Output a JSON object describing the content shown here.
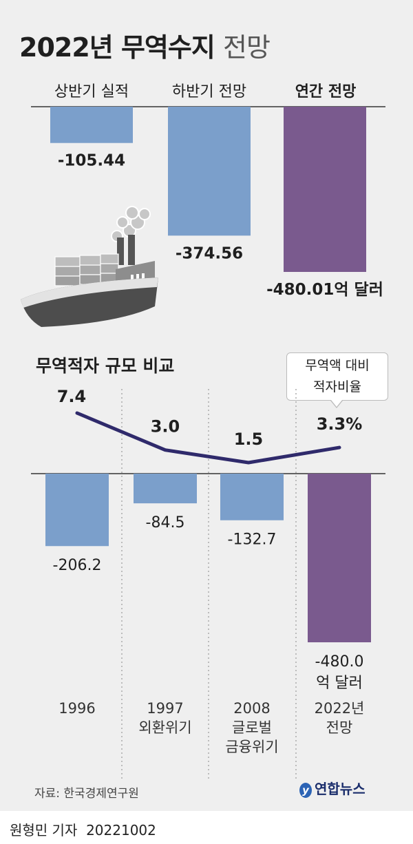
{
  "title": {
    "main": "2022년 무역수지",
    "sub": "전망"
  },
  "colors": {
    "blue": "#7b9fcb",
    "purple": "#7a5a8e",
    "line": "#2f2a6b",
    "panel": "#efefef"
  },
  "chart_data": [
    {
      "type": "bar",
      "categories": [
        "상반기 실적",
        "하반기 전망",
        "연간 전망"
      ],
      "values": [
        -105.44,
        -374.56,
        -480.01
      ],
      "labels": [
        "-105.44",
        "-374.56",
        "-480.01억 달러"
      ],
      "highlight_index": 2
    },
    {
      "type": "bar",
      "title": "무역적자 규모 비교",
      "categories": [
        "1996",
        "1997 외환위기",
        "2008 글로벌 금융위기",
        "2022년 전망"
      ],
      "category_lines": [
        [
          "1996"
        ],
        [
          "1997",
          "외환위기"
        ],
        [
          "2008",
          "글로벌",
          "금융위기"
        ],
        [
          "2022년",
          "전망"
        ]
      ],
      "values": [
        -206.2,
        -84.5,
        -132.7,
        -480.0
      ],
      "labels": [
        "-206.2",
        "-84.5",
        "-132.7",
        "-480.0"
      ],
      "last_label_unit": "억 달러",
      "line_series": {
        "name": "무역액 대비 적자비율",
        "name_lines": [
          "무역액 대비",
          "적자비율"
        ],
        "values": [
          7.4,
          3.0,
          1.5,
          3.3
        ],
        "labels": [
          "7.4",
          "3.0",
          "1.5",
          "3.3%"
        ]
      }
    }
  ],
  "source": "자료: 한국경제연구원",
  "logo": "연합뉴스",
  "byline": {
    "author": "원형민 기자",
    "date": "20221002"
  }
}
